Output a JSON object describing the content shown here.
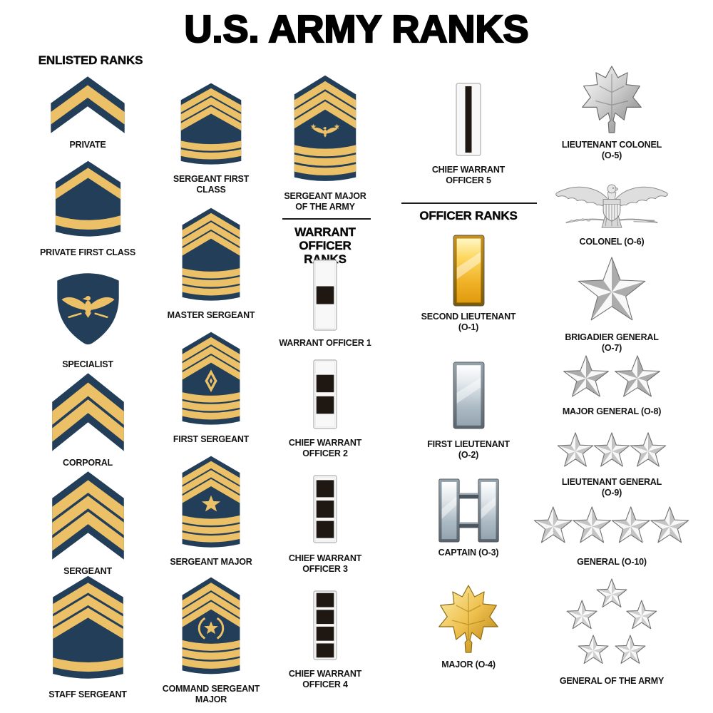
{
  "title": "U.S. ARMY RANKS",
  "sections": {
    "enlisted": "ENLISTED RANKS",
    "warrant": "WARRANT OFFICER\nRANKS",
    "officer": "OFFICER RANKS"
  },
  "colors": {
    "background": "#FFFFFF",
    "title_text": "#000000",
    "navy": "#233E58",
    "gold": "#ECC066",
    "black_square": "#1F1812",
    "wo_bar_bg": "#F8F8F8",
    "wo_bar_border": "#B8B8B8",
    "silver_light": "#F6F6F6",
    "silver_dark": "#ACACAC",
    "star_outline": "#6F6F6F",
    "eagle_gray": "#DEDEDE",
    "eagle_outline": "#8A8A8A"
  },
  "ranks": [
    {
      "id": "private",
      "label": "PRIVATE",
      "insignia": {
        "type": "chevron",
        "chevrons": 1,
        "rockers": 0
      }
    },
    {
      "id": "private-first-class",
      "label": "PRIVATE FIRST CLASS",
      "insignia": {
        "type": "chevron",
        "chevrons": 1,
        "rockers": 1,
        "field": 26
      }
    },
    {
      "id": "specialist",
      "label": "SPECIALIST",
      "insignia": {
        "type": "specialist"
      }
    },
    {
      "id": "corporal",
      "label": "CORPORAL",
      "insignia": {
        "type": "chevron",
        "chevrons": 2,
        "rockers": 0
      }
    },
    {
      "id": "sergeant",
      "label": "SERGEANT",
      "insignia": {
        "type": "chevron",
        "chevrons": 3,
        "rockers": 0
      }
    },
    {
      "id": "staff-sergeant",
      "label": "STAFF SERGEANT",
      "insignia": {
        "type": "chevron",
        "chevrons": 3,
        "rockers": 1,
        "field": 30
      }
    },
    {
      "id": "sergeant-first-class",
      "label": "SERGEANT FIRST\nCLASS",
      "insignia": {
        "type": "chevron",
        "chevrons": 3,
        "rockers": 2,
        "small": true,
        "field": 18
      }
    },
    {
      "id": "master-sergeant",
      "label": "MASTER SERGEANT",
      "insignia": {
        "type": "chevron",
        "chevrons": 3,
        "rockers": 3,
        "small": true,
        "field": 22
      }
    },
    {
      "id": "first-sergeant",
      "label": "FIRST SERGEANT",
      "insignia": {
        "type": "chevron",
        "chevrons": 3,
        "rockers": 3,
        "small": true,
        "field": 22,
        "device": "diamond"
      }
    },
    {
      "id": "sergeant-major",
      "label": "SERGEANT MAJOR",
      "insignia": {
        "type": "chevron",
        "chevrons": 3,
        "rockers": 3,
        "small": true,
        "field": 22,
        "device": "star"
      }
    },
    {
      "id": "command-sergeant-major",
      "label": "COMMAND SERGEANT\nMAJOR",
      "insignia": {
        "type": "chevron",
        "chevrons": 3,
        "rockers": 3,
        "small": true,
        "field": 22,
        "device": "wreath-star"
      }
    },
    {
      "id": "sergeant-major-of-the-army",
      "label": "SERGEANT MAJOR\nOF THE ARMY",
      "insignia": {
        "type": "chevron",
        "chevrons": 3,
        "rockers": 3,
        "small": true,
        "field": 26,
        "device": "eagle-stars"
      }
    },
    {
      "id": "warrant-officer-1",
      "label": "WARRANT OFFICER 1",
      "insignia": {
        "type": "wo-bar",
        "squares": 1
      }
    },
    {
      "id": "chief-warrant-officer-2",
      "label": "CHIEF WARRANT\nOFFICER 2",
      "insignia": {
        "type": "wo-bar",
        "squares": 2
      }
    },
    {
      "id": "chief-warrant-officer-3",
      "label": "CHIEF WARRANT\nOFFICER 3",
      "insignia": {
        "type": "wo-bar",
        "squares": 3
      }
    },
    {
      "id": "chief-warrant-officer-4",
      "label": "CHIEF WARRANT\nOFFICER 4",
      "insignia": {
        "type": "wo-bar",
        "squares": 4
      }
    },
    {
      "id": "chief-warrant-officer-5",
      "label": "CHIEF WARRANT\nOFFICER 5",
      "insignia": {
        "type": "wo-stripe"
      }
    },
    {
      "id": "second-lieutenant",
      "label": "SECOND LIEUTENANT\n(O-1)",
      "insignia": {
        "type": "bar",
        "metal": "gold"
      }
    },
    {
      "id": "first-lieutenant",
      "label": "FIRST LIEUTENANT\n(O-2)",
      "insignia": {
        "type": "bar",
        "metal": "silver"
      }
    },
    {
      "id": "captain",
      "label": "CAPTAIN (O-3)",
      "insignia": {
        "type": "double-bar"
      }
    },
    {
      "id": "major",
      "label": "MAJOR (O-4)",
      "insignia": {
        "type": "oak-leaf",
        "metal": "gold"
      }
    },
    {
      "id": "lieutenant-colonel",
      "label": "LIEUTENANT COLONEL\n(O-5)",
      "insignia": {
        "type": "oak-leaf",
        "metal": "silver"
      }
    },
    {
      "id": "colonel",
      "label": "COLONEL (O-6)",
      "insignia": {
        "type": "eagle"
      }
    },
    {
      "id": "brigadier-general",
      "label": "BRIGADIER GENERAL\n(O-7)",
      "insignia": {
        "type": "stars",
        "count": 1
      }
    },
    {
      "id": "major-general",
      "label": "MAJOR GENERAL (O-8)",
      "insignia": {
        "type": "stars",
        "count": 2
      }
    },
    {
      "id": "lieutenant-general",
      "label": "LIEUTENANT GENERAL\n(O-9)",
      "insignia": {
        "type": "stars",
        "count": 3
      }
    },
    {
      "id": "general",
      "label": "GENERAL (O-10)",
      "insignia": {
        "type": "stars",
        "count": 4
      }
    },
    {
      "id": "general-of-the-army",
      "label": "GENERAL OF THE ARMY",
      "insignia": {
        "type": "star-circle",
        "count": 5
      }
    }
  ]
}
